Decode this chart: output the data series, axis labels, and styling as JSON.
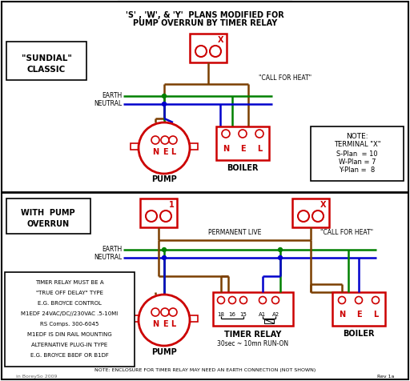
{
  "title_line1": "'S' , 'W', & 'Y'  PLANS MODIFIED FOR",
  "title_line2": "PUMP OVERRUN BY TIMER RELAY",
  "bg_color": "#ffffff",
  "red": "#cc0000",
  "green": "#008000",
  "blue": "#0000cc",
  "brown": "#7B3F00",
  "black": "#000000",
  "gray": "#666666",
  "sundial_label1": "\"SUNDIAL\"",
  "sundial_label2": "CLASSIC",
  "with_pump1": "WITH  PUMP",
  "with_pump2": "OVERRUN",
  "pump_label": "PUMP",
  "boiler_label": "BOILER",
  "note_title": "NOTE:",
  "note_line1": "TERMINAL \"X\"",
  "note_line2": "S-Plan  = 10",
  "note_line3": "W-Plan = 7",
  "note_line4": "Y-Plan =  8",
  "earth_label": "EARTH",
  "neutral_label": "NEUTRAL",
  "call_heat": "\"CALL FOR HEAT\"",
  "perm_live": "PERMANENT LIVE",
  "timer_relay_label": "TIMER RELAY",
  "timer_subtitle": "30sec ~ 10mn RUN-ON",
  "note_bottom": "NOTE: ENCLOSURE FOR TIMER RELAY MAY NEED AN EARTH CONNECTION (NOT SHOWN)",
  "note_box_lines": [
    "TIMER RELAY MUST BE A",
    "\"TRUE OFF DELAY\" TYPE",
    "E.G. BROYCE CONTROL",
    "M1EDF 24VAC/DC//230VAC .5-10MI",
    "RS Comps. 300-6045",
    "M1EDF IS DIN RAIL MOUNTING",
    "ALTERNATIVE PLUG-IN TYPE",
    "E.G. BROYCE B8DF OR B1DF"
  ],
  "credit": "in BoreySo 2009",
  "rev": "Rev 1a"
}
